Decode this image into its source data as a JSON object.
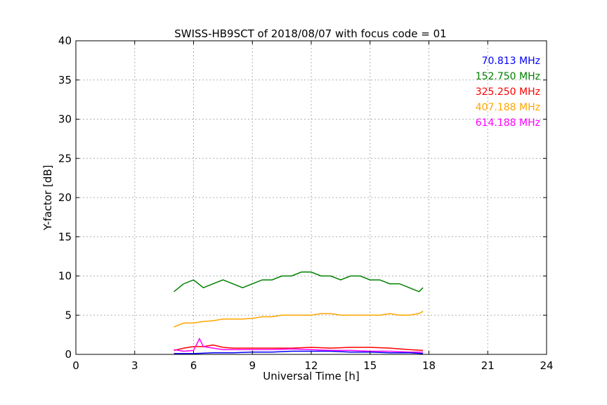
{
  "chart_data": {
    "type": "line",
    "title": "SWISS-HB9SCT of 2018/08/07 with focus code = 01",
    "xlabel": "Universal Time [h]",
    "ylabel": "Y-factor [dB]",
    "xlim": [
      0,
      24
    ],
    "ylim": [
      0,
      40
    ],
    "xticks": [
      0,
      3,
      6,
      9,
      12,
      15,
      18,
      21,
      24
    ],
    "yticks": [
      0,
      5,
      10,
      15,
      20,
      25,
      30,
      35,
      40
    ],
    "grid": true,
    "legend_position": "top-right",
    "series": [
      {
        "name": "70.813 MHz",
        "color": "#0000ff",
        "x": [
          5.0,
          6.0,
          7.0,
          8.0,
          9.0,
          10.0,
          11.0,
          12.0,
          13.0,
          14.0,
          15.0,
          16.0,
          17.0,
          17.7
        ],
        "y": [
          0.1,
          0.1,
          0.2,
          0.2,
          0.3,
          0.3,
          0.4,
          0.4,
          0.4,
          0.3,
          0.3,
          0.2,
          0.2,
          0.1
        ]
      },
      {
        "name": "152.750 MHz",
        "color": "#008000",
        "x": [
          5.0,
          5.5,
          6.0,
          6.5,
          7.0,
          7.5,
          8.0,
          8.5,
          9.0,
          9.5,
          10.0,
          10.5,
          11.0,
          11.5,
          12.0,
          12.5,
          13.0,
          13.5,
          14.0,
          14.5,
          15.0,
          15.5,
          16.0,
          16.5,
          17.0,
          17.5,
          17.7
        ],
        "y": [
          8.0,
          9.0,
          9.5,
          8.5,
          9.0,
          9.5,
          9.0,
          8.5,
          9.0,
          9.5,
          9.5,
          10.0,
          10.0,
          10.5,
          10.5,
          10.0,
          10.0,
          9.5,
          10.0,
          10.0,
          9.5,
          9.5,
          9.0,
          9.0,
          8.5,
          8.0,
          8.5
        ]
      },
      {
        "name": "325.250 MHz",
        "color": "#ff0000",
        "x": [
          5.0,
          5.5,
          6.0,
          6.5,
          7.0,
          7.5,
          8.0,
          9.0,
          10.0,
          11.0,
          12.0,
          13.0,
          14.0,
          15.0,
          16.0,
          17.0,
          17.7
        ],
        "y": [
          0.5,
          0.8,
          1.0,
          1.0,
          1.2,
          0.9,
          0.8,
          0.8,
          0.8,
          0.8,
          0.9,
          0.8,
          0.9,
          0.9,
          0.8,
          0.6,
          0.5
        ]
      },
      {
        "name": "407.188 MHz",
        "color": "#ffa500",
        "x": [
          5.0,
          5.5,
          6.0,
          6.5,
          7.0,
          7.5,
          8.0,
          8.5,
          9.0,
          9.5,
          10.0,
          10.5,
          11.0,
          11.5,
          12.0,
          12.5,
          13.0,
          13.5,
          14.0,
          14.5,
          15.0,
          15.5,
          16.0,
          16.5,
          17.0,
          17.5,
          17.7
        ],
        "y": [
          3.5,
          4.0,
          4.0,
          4.2,
          4.3,
          4.5,
          4.5,
          4.5,
          4.6,
          4.8,
          4.8,
          5.0,
          5.0,
          5.0,
          5.0,
          5.2,
          5.2,
          5.0,
          5.0,
          5.0,
          5.0,
          5.0,
          5.2,
          5.0,
          5.0,
          5.2,
          5.5
        ]
      },
      {
        "name": "614.188 MHz",
        "color": "#ff00ff",
        "x": [
          5.0,
          5.5,
          6.0,
          6.3,
          6.5,
          7.0,
          7.5,
          8.0,
          9.0,
          10.0,
          11.0,
          12.0,
          13.0,
          14.0,
          15.0,
          16.0,
          17.0,
          17.7
        ],
        "y": [
          0.6,
          0.4,
          0.5,
          2.0,
          1.0,
          0.8,
          0.6,
          0.6,
          0.6,
          0.6,
          0.7,
          0.6,
          0.5,
          0.5,
          0.4,
          0.4,
          0.3,
          0.3
        ]
      }
    ]
  }
}
